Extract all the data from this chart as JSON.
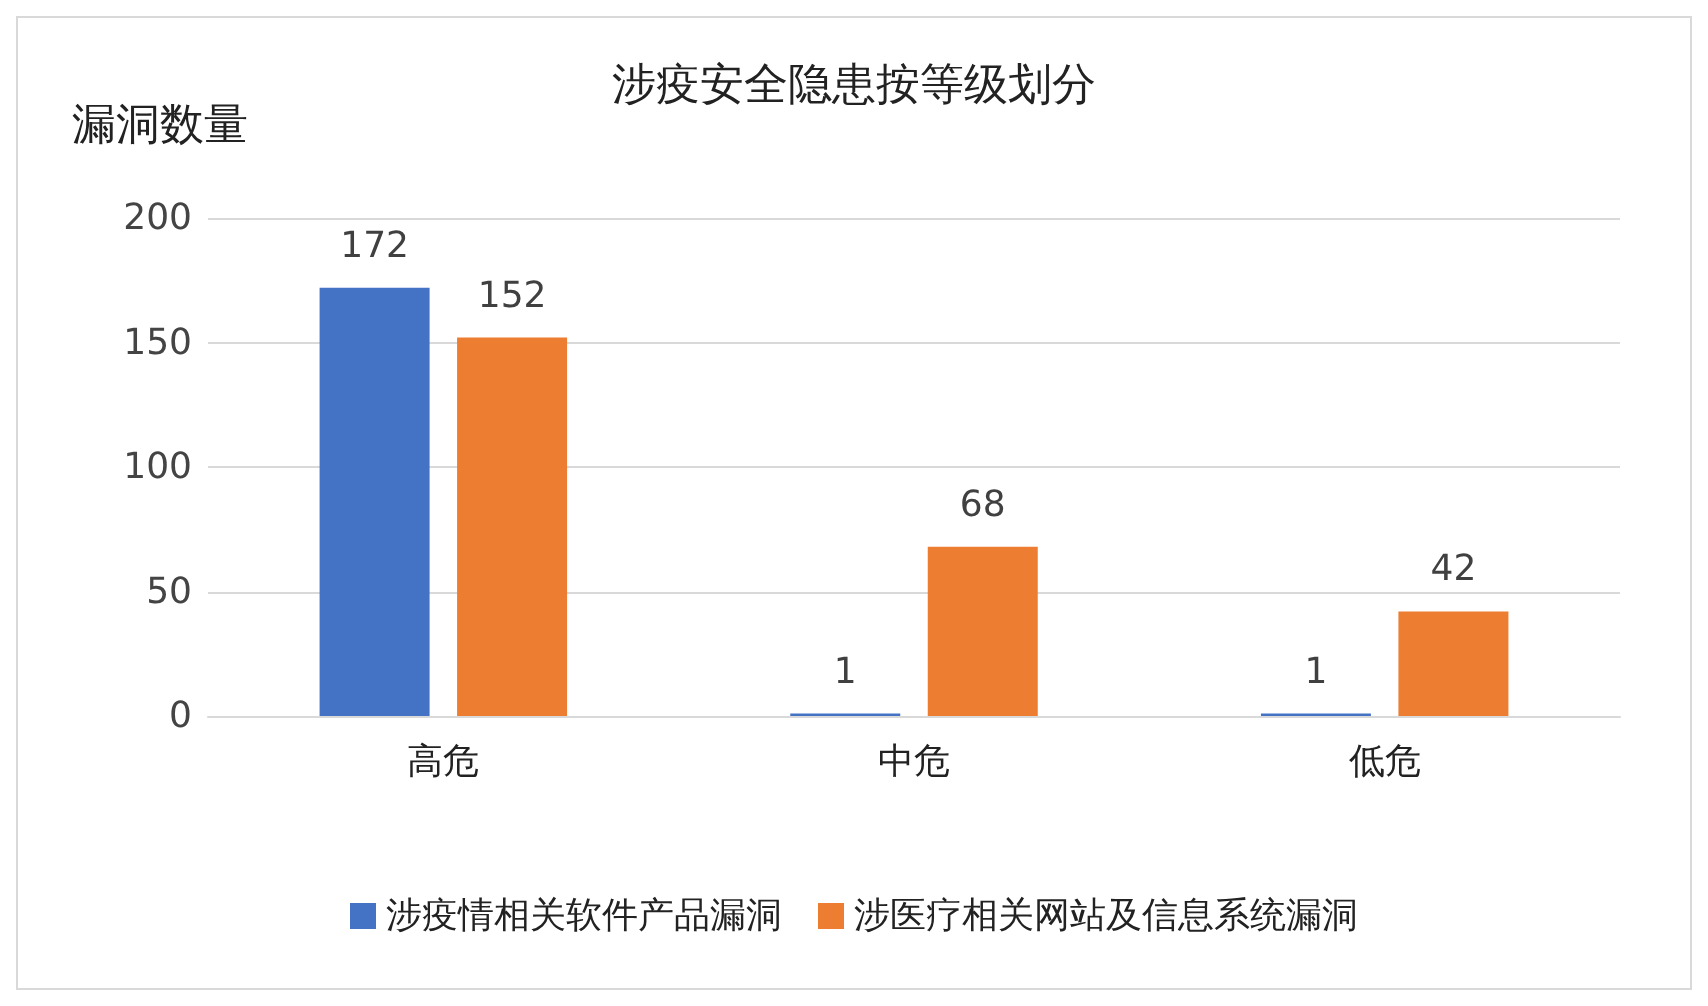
{
  "chart_data": {
    "type": "bar",
    "title": "涉疫安全隐患按等级划分",
    "ylabel": "漏洞数量",
    "categories": [
      "高危",
      "中危",
      "低危"
    ],
    "series": [
      {
        "name": "涉疫情相关软件产品漏洞",
        "color": "#4472c4",
        "values": [
          172,
          1,
          1
        ]
      },
      {
        "name": "涉医疗相关网站及信息系统漏洞",
        "color": "#ed7d31",
        "values": [
          152,
          68,
          42
        ]
      }
    ],
    "ylim": [
      0,
      200
    ],
    "yticks": [
      0,
      50,
      100,
      150,
      200
    ],
    "grid": "y",
    "legend": "bottom",
    "data_labels": true
  }
}
